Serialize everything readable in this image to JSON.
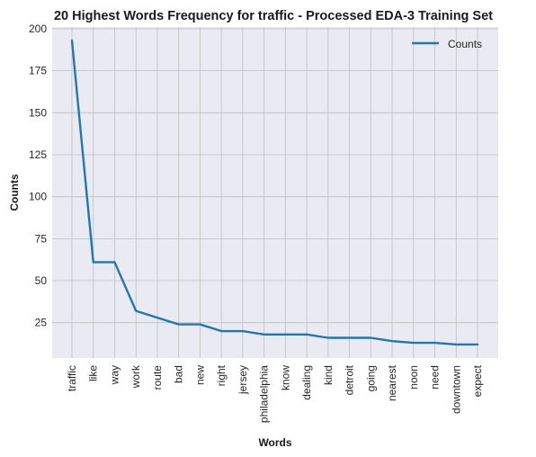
{
  "chart_data": {
    "type": "line",
    "title": "20 Highest Words Frequency for traffic - Processed EDA-3 Training Set",
    "xlabel": "Words",
    "ylabel": "Counts",
    "categories": [
      "traffic",
      "like",
      "way",
      "work",
      "route",
      "bad",
      "new",
      "right",
      "jersey",
      "philadelphia",
      "know",
      "dealing",
      "kind",
      "detroit",
      "going",
      "nearest",
      "noon",
      "need",
      "downtown",
      "expect"
    ],
    "series": [
      {
        "name": "Counts",
        "values": [
          193,
          61,
          61,
          32,
          28,
          24,
          24,
          20,
          20,
          18,
          18,
          18,
          16,
          16,
          16,
          14,
          13,
          13,
          12,
          12
        ],
        "color": "#1f77b4"
      }
    ],
    "yticks": [
      25,
      50,
      75,
      100,
      125,
      150,
      175,
      200
    ],
    "ylim": [
      3.95,
      201.05
    ],
    "grid": true,
    "legend_position": "top-right",
    "background_color": "#eaeaf2",
    "grid_color": "#c0c0c0"
  }
}
